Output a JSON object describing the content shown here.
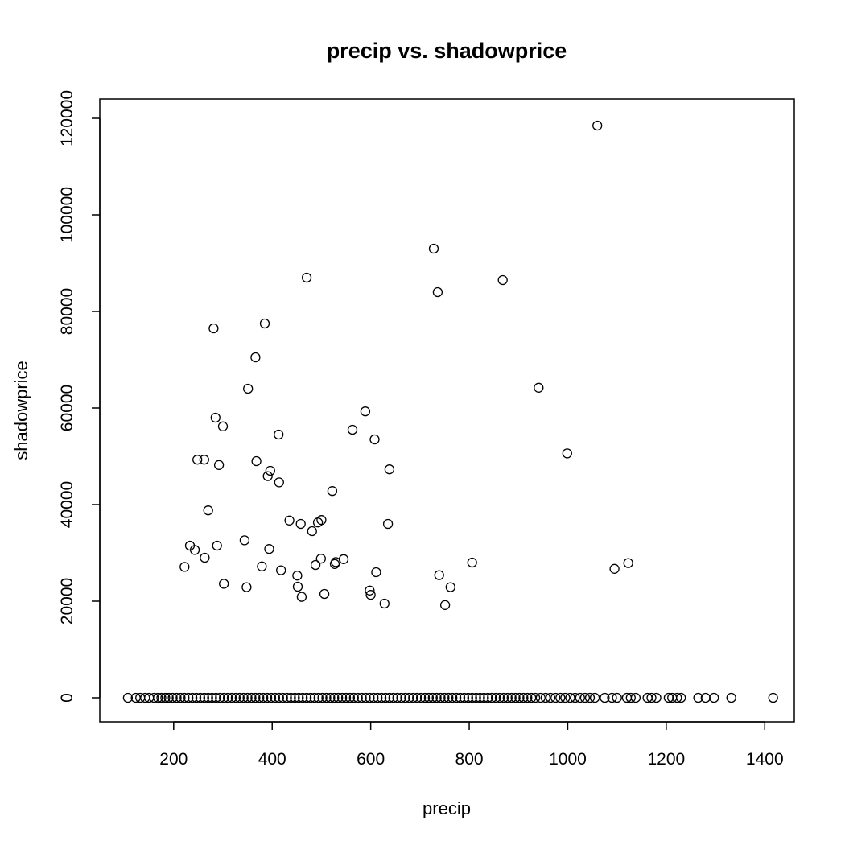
{
  "chart_data": {
    "type": "scatter",
    "title": "precip vs. shadowprice",
    "xlabel": "precip",
    "ylabel": "shadowprice",
    "xlim": [
      50,
      1460
    ],
    "ylim": [
      -5000,
      124000
    ],
    "x_ticks": [
      200,
      400,
      600,
      800,
      1000,
      1200,
      1400
    ],
    "y_ticks": [
      0,
      20000,
      40000,
      60000,
      80000,
      100000,
      120000
    ],
    "marker": "open-circle",
    "grid": false,
    "legend": "none",
    "points": [
      [
        1060,
        118500
      ],
      [
        728,
        93000
      ],
      [
        736,
        84000
      ],
      [
        868,
        86500
      ],
      [
        470,
        87000
      ],
      [
        281,
        76500
      ],
      [
        385,
        77500
      ],
      [
        366,
        70500
      ],
      [
        351,
        64000
      ],
      [
        941,
        64200
      ],
      [
        589,
        59300
      ],
      [
        285,
        58000
      ],
      [
        300,
        56200
      ],
      [
        563,
        55500
      ],
      [
        413,
        54500
      ],
      [
        608,
        53500
      ],
      [
        999,
        50600
      ],
      [
        248,
        49300
      ],
      [
        262,
        49300
      ],
      [
        368,
        49000
      ],
      [
        292,
        48200
      ],
      [
        396,
        47000
      ],
      [
        391,
        45900
      ],
      [
        638,
        47300
      ],
      [
        414,
        44600
      ],
      [
        522,
        42800
      ],
      [
        270,
        38800
      ],
      [
        435,
        36700
      ],
      [
        458,
        36000
      ],
      [
        493,
        36300
      ],
      [
        500,
        36800
      ],
      [
        635,
        36000
      ],
      [
        344,
        32600
      ],
      [
        233,
        31500
      ],
      [
        243,
        30600
      ],
      [
        288,
        31500
      ],
      [
        394,
        30800
      ],
      [
        263,
        29000
      ],
      [
        481,
        34500
      ],
      [
        499,
        28800
      ],
      [
        545,
        28700
      ],
      [
        527,
        27700
      ],
      [
        529,
        28100
      ],
      [
        488,
        27500
      ],
      [
        379,
        27200
      ],
      [
        222,
        27100
      ],
      [
        418,
        26400
      ],
      [
        611,
        26000
      ],
      [
        739,
        25400
      ],
      [
        806,
        28000
      ],
      [
        1095,
        26700
      ],
      [
        1123,
        27900
      ],
      [
        451,
        25300
      ],
      [
        302,
        23600
      ],
      [
        348,
        22900
      ],
      [
        452,
        23000
      ],
      [
        598,
        22200
      ],
      [
        600,
        21300
      ],
      [
        460,
        20900
      ],
      [
        506,
        21500
      ],
      [
        762,
        22900
      ],
      [
        628,
        19500
      ],
      [
        751,
        19200
      ],
      [
        107,
        0
      ],
      [
        123,
        0
      ],
      [
        132,
        0
      ],
      [
        142,
        0
      ],
      [
        150,
        0
      ],
      [
        160,
        0
      ],
      [
        168,
        0
      ],
      [
        175,
        0
      ],
      [
        183,
        0
      ],
      [
        190,
        0
      ],
      [
        198,
        0
      ],
      [
        206,
        0
      ],
      [
        214,
        0
      ],
      [
        222,
        0
      ],
      [
        230,
        0
      ],
      [
        238,
        0
      ],
      [
        246,
        0
      ],
      [
        254,
        0
      ],
      [
        262,
        0
      ],
      [
        270,
        0
      ],
      [
        278,
        0
      ],
      [
        286,
        0
      ],
      [
        294,
        0
      ],
      [
        302,
        0
      ],
      [
        310,
        0
      ],
      [
        318,
        0
      ],
      [
        326,
        0
      ],
      [
        334,
        0
      ],
      [
        342,
        0
      ],
      [
        350,
        0
      ],
      [
        358,
        0
      ],
      [
        366,
        0
      ],
      [
        374,
        0
      ],
      [
        382,
        0
      ],
      [
        390,
        0
      ],
      [
        398,
        0
      ],
      [
        406,
        0
      ],
      [
        414,
        0
      ],
      [
        422,
        0
      ],
      [
        430,
        0
      ],
      [
        438,
        0
      ],
      [
        446,
        0
      ],
      [
        454,
        0
      ],
      [
        462,
        0
      ],
      [
        470,
        0
      ],
      [
        478,
        0
      ],
      [
        486,
        0
      ],
      [
        494,
        0
      ],
      [
        502,
        0
      ],
      [
        510,
        0
      ],
      [
        518,
        0
      ],
      [
        526,
        0
      ],
      [
        534,
        0
      ],
      [
        542,
        0
      ],
      [
        550,
        0
      ],
      [
        558,
        0
      ],
      [
        566,
        0
      ],
      [
        574,
        0
      ],
      [
        582,
        0
      ],
      [
        590,
        0
      ],
      [
        598,
        0
      ],
      [
        606,
        0
      ],
      [
        614,
        0
      ],
      [
        622,
        0
      ],
      [
        630,
        0
      ],
      [
        638,
        0
      ],
      [
        646,
        0
      ],
      [
        654,
        0
      ],
      [
        662,
        0
      ],
      [
        670,
        0
      ],
      [
        678,
        0
      ],
      [
        686,
        0
      ],
      [
        694,
        0
      ],
      [
        702,
        0
      ],
      [
        710,
        0
      ],
      [
        718,
        0
      ],
      [
        726,
        0
      ],
      [
        734,
        0
      ],
      [
        742,
        0
      ],
      [
        750,
        0
      ],
      [
        758,
        0
      ],
      [
        766,
        0
      ],
      [
        774,
        0
      ],
      [
        782,
        0
      ],
      [
        790,
        0
      ],
      [
        798,
        0
      ],
      [
        806,
        0
      ],
      [
        814,
        0
      ],
      [
        822,
        0
      ],
      [
        830,
        0
      ],
      [
        838,
        0
      ],
      [
        846,
        0
      ],
      [
        854,
        0
      ],
      [
        862,
        0
      ],
      [
        870,
        0
      ],
      [
        878,
        0
      ],
      [
        886,
        0
      ],
      [
        894,
        0
      ],
      [
        902,
        0
      ],
      [
        910,
        0
      ],
      [
        918,
        0
      ],
      [
        926,
        0
      ],
      [
        934,
        0
      ],
      [
        945,
        0
      ],
      [
        955,
        0
      ],
      [
        965,
        0
      ],
      [
        975,
        0
      ],
      [
        985,
        0
      ],
      [
        995,
        0
      ],
      [
        1005,
        0
      ],
      [
        1015,
        0
      ],
      [
        1025,
        0
      ],
      [
        1035,
        0
      ],
      [
        1045,
        0
      ],
      [
        1055,
        0
      ],
      [
        1075,
        0
      ],
      [
        1090,
        0
      ],
      [
        1100,
        0
      ],
      [
        1120,
        0
      ],
      [
        1128,
        0
      ],
      [
        1138,
        0
      ],
      [
        1162,
        0
      ],
      [
        1170,
        0
      ],
      [
        1180,
        0
      ],
      [
        1205,
        0
      ],
      [
        1212,
        0
      ],
      [
        1222,
        0
      ],
      [
        1230,
        0
      ],
      [
        1265,
        0
      ],
      [
        1280,
        0
      ],
      [
        1297,
        0
      ],
      [
        1332,
        0
      ],
      [
        1417,
        0
      ]
    ]
  }
}
